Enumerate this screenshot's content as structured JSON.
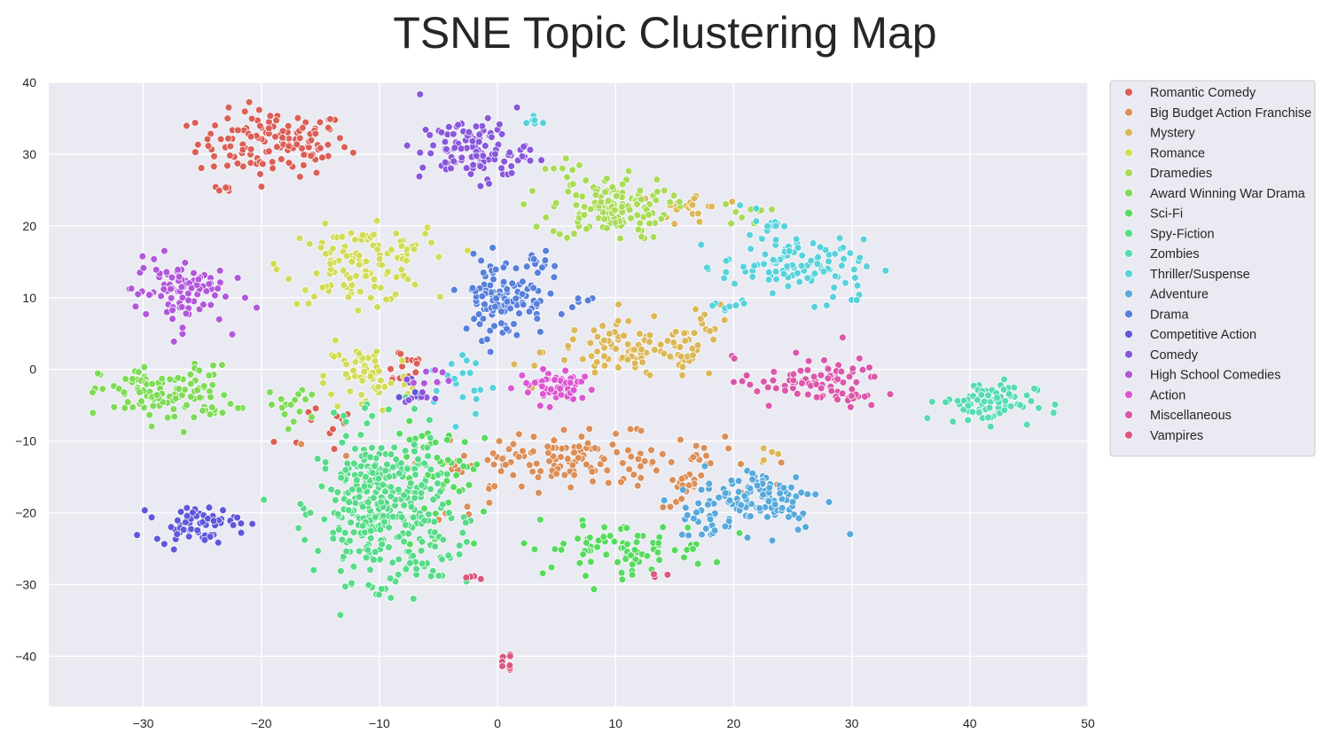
{
  "chart_data": {
    "type": "scatter",
    "title": "TSNE Topic Clustering Map",
    "xlabel": "",
    "ylabel": "",
    "xlim": [
      -38,
      50
    ],
    "ylim": [
      -47,
      40
    ],
    "x_ticks": [
      -30,
      -20,
      -10,
      0,
      10,
      20,
      30,
      40,
      50
    ],
    "y_ticks": [
      40,
      30,
      20,
      10,
      0,
      -10,
      -20,
      -30,
      -40
    ],
    "x_tick_labels": [
      "−30",
      "−20",
      "−10",
      "0",
      "10",
      "20",
      "30",
      "40",
      "50"
    ],
    "y_tick_labels": [
      "40",
      "30",
      "20",
      "10",
      "0",
      "−10",
      "−20",
      "−30",
      "−40"
    ],
    "grid": true,
    "background": "#eaeaf2",
    "legend_position": "outside-top-right",
    "series": [
      {
        "name": "Romantic Comedy",
        "color": "#db5f57",
        "clusters": [
          {
            "cx": -19,
            "cy": 31.5,
            "sx": 3.2,
            "sy": 2.3,
            "n": 130
          },
          {
            "cx": -8,
            "cy": 0.5,
            "sx": 1.0,
            "sy": 1.6,
            "n": 18
          },
          {
            "cx": -13.5,
            "cy": -8,
            "sx": 2.5,
            "sy": 2.5,
            "n": 12
          },
          {
            "cx": -23,
            "cy": 25.3,
            "sx": 0.5,
            "sy": 0.3,
            "n": 6
          }
        ]
      },
      {
        "name": "Big Budget Action Franchise",
        "color": "#db8e57",
        "clusters": [
          {
            "cx": 6,
            "cy": -12.5,
            "sx": 6.5,
            "sy": 1.8,
            "n": 150
          },
          {
            "cx": 16,
            "cy": -17,
            "sx": 1.0,
            "sy": 1.2,
            "n": 16
          },
          {
            "cx": -3.5,
            "cy": -20,
            "sx": 1.0,
            "sy": 0.8,
            "n": 4
          }
        ]
      },
      {
        "name": "Mystery",
        "color": "#dbb757",
        "clusters": [
          {
            "cx": 12,
            "cy": 2.5,
            "sx": 4.0,
            "sy": 2.0,
            "n": 110
          },
          {
            "cx": 16.5,
            "cy": 22.5,
            "sx": 1.4,
            "sy": 1.3,
            "n": 22
          },
          {
            "cx": 18,
            "cy": 7.5,
            "sx": 0.8,
            "sy": 0.8,
            "n": 6
          },
          {
            "cx": 22.5,
            "cy": -11.5,
            "sx": 1.0,
            "sy": 1.0,
            "n": 5
          }
        ]
      },
      {
        "name": "Romance",
        "color": "#d2db57",
        "clusters": [
          {
            "cx": -12,
            "cy": 14.5,
            "sx": 3.0,
            "sy": 2.6,
            "n": 110
          },
          {
            "cx": -11,
            "cy": -1,
            "sx": 1.8,
            "sy": 2.6,
            "n": 60
          },
          {
            "cx": -7.5,
            "cy": 18,
            "sx": 1.2,
            "sy": 1.0,
            "n": 12
          }
        ]
      },
      {
        "name": "Dramedies",
        "color": "#a9db57",
        "clusters": [
          {
            "cx": 9.5,
            "cy": 22.5,
            "sx": 2.5,
            "sy": 2.2,
            "n": 130
          },
          {
            "cx": 21,
            "cy": 21.5,
            "sx": 1.0,
            "sy": 0.8,
            "n": 10
          },
          {
            "cx": 6,
            "cy": 28,
            "sx": 1.0,
            "sy": 0.8,
            "n": 8
          }
        ]
      },
      {
        "name": "Award Winning War Drama",
        "color": "#7fdb57",
        "clusters": [
          {
            "cx": -28,
            "cy": -3.5,
            "sx": 2.8,
            "sy": 2.0,
            "n": 120
          },
          {
            "cx": -17,
            "cy": -5,
            "sx": 1.2,
            "sy": 1.5,
            "n": 16
          }
        ]
      },
      {
        "name": "Sci-Fi",
        "color": "#57db5f",
        "clusters": [
          {
            "cx": 10,
            "cy": -25,
            "sx": 4.0,
            "sy": 1.8,
            "n": 80
          },
          {
            "cx": -4,
            "cy": -14.5,
            "sx": 2.5,
            "sy": 3.5,
            "n": 50
          }
        ]
      },
      {
        "name": "Spy-Fiction",
        "color": "#57db89",
        "clusters": [
          {
            "cx": -10,
            "cy": -19,
            "sx": 2.6,
            "sy": 5.2,
            "n": 340
          },
          {
            "cx": -6,
            "cy": -25,
            "sx": 1.8,
            "sy": 2.5,
            "n": 30
          }
        ]
      },
      {
        "name": "Zombies",
        "color": "#57dbb2",
        "clusters": [
          {
            "cx": 41.5,
            "cy": -4.5,
            "sx": 2.0,
            "sy": 1.5,
            "n": 80
          }
        ]
      },
      {
        "name": "Thriller/Suspense",
        "color": "#57d2db",
        "clusters": [
          {
            "cx": 25,
            "cy": 14.5,
            "sx": 3.0,
            "sy": 1.8,
            "n": 95
          },
          {
            "cx": 22.5,
            "cy": 20.5,
            "sx": 0.8,
            "sy": 1.3,
            "n": 15
          },
          {
            "cx": 29.5,
            "cy": 10.5,
            "sx": 0.8,
            "sy": 1.2,
            "n": 10
          },
          {
            "cx": -3,
            "cy": -2,
            "sx": 1.5,
            "sy": 2.5,
            "n": 20
          },
          {
            "cx": 19.5,
            "cy": 9.5,
            "sx": 0.7,
            "sy": 1.0,
            "n": 8
          },
          {
            "cx": 2.8,
            "cy": 34.5,
            "sx": 0.6,
            "sy": 0.4,
            "n": 6
          }
        ]
      },
      {
        "name": "Adventure",
        "color": "#57a9db",
        "clusters": [
          {
            "cx": 22.5,
            "cy": -18,
            "sx": 2.6,
            "sy": 2.3,
            "n": 110
          },
          {
            "cx": 17.5,
            "cy": -21,
            "sx": 1.0,
            "sy": 1.3,
            "n": 20
          }
        ]
      },
      {
        "name": "Drama",
        "color": "#577fdb",
        "clusters": [
          {
            "cx": 0.5,
            "cy": 10,
            "sx": 1.8,
            "sy": 2.8,
            "n": 110
          },
          {
            "cx": 3.5,
            "cy": 15,
            "sx": 1.0,
            "sy": 1.0,
            "n": 12
          },
          {
            "cx": 7,
            "cy": 9.5,
            "sx": 0.8,
            "sy": 0.8,
            "n": 6
          }
        ]
      },
      {
        "name": "Competitive Action",
        "color": "#5f57db",
        "clusters": [
          {
            "cx": -25.5,
            "cy": -21.5,
            "sx": 1.8,
            "sy": 1.2,
            "n": 60
          },
          {
            "cx": -7.5,
            "cy": -3,
            "sx": 0.8,
            "sy": 1.0,
            "n": 6
          }
        ]
      },
      {
        "name": "Comedy",
        "color": "#8957db",
        "clusters": [
          {
            "cx": -2,
            "cy": 30.5,
            "sx": 2.3,
            "sy": 2.2,
            "n": 110
          },
          {
            "cx": -7.5,
            "cy": -3.5,
            "sx": 1.2,
            "sy": 1.2,
            "n": 10
          }
        ]
      },
      {
        "name": "High School Comedies",
        "color": "#b257db",
        "clusters": [
          {
            "cx": -27,
            "cy": 11,
            "sx": 2.0,
            "sy": 2.4,
            "n": 90
          },
          {
            "cx": -5.5,
            "cy": -1,
            "sx": 0.8,
            "sy": 1.0,
            "n": 8
          }
        ]
      },
      {
        "name": "Action",
        "color": "#db57d2",
        "clusters": [
          {
            "cx": 5,
            "cy": -2.5,
            "sx": 1.7,
            "sy": 1.2,
            "n": 55
          }
        ]
      },
      {
        "name": "Miscellaneous",
        "color": "#db57a9",
        "clusters": [
          {
            "cx": 28.5,
            "cy": -2,
            "sx": 2.0,
            "sy": 1.8,
            "n": 55
          },
          {
            "cx": 24,
            "cy": -1.5,
            "sx": 2.0,
            "sy": 1.6,
            "n": 30
          }
        ]
      },
      {
        "name": "Vampires",
        "color": "#db577f",
        "clusters": [
          {
            "cx": 1,
            "cy": -41,
            "sx": 0.4,
            "sy": 0.8,
            "n": 10
          },
          {
            "cx": -2.5,
            "cy": -29,
            "sx": 0.5,
            "sy": 0.5,
            "n": 4
          },
          {
            "cx": 14,
            "cy": -28.5,
            "sx": 0.5,
            "sy": 0.4,
            "n": 3
          }
        ]
      }
    ]
  }
}
